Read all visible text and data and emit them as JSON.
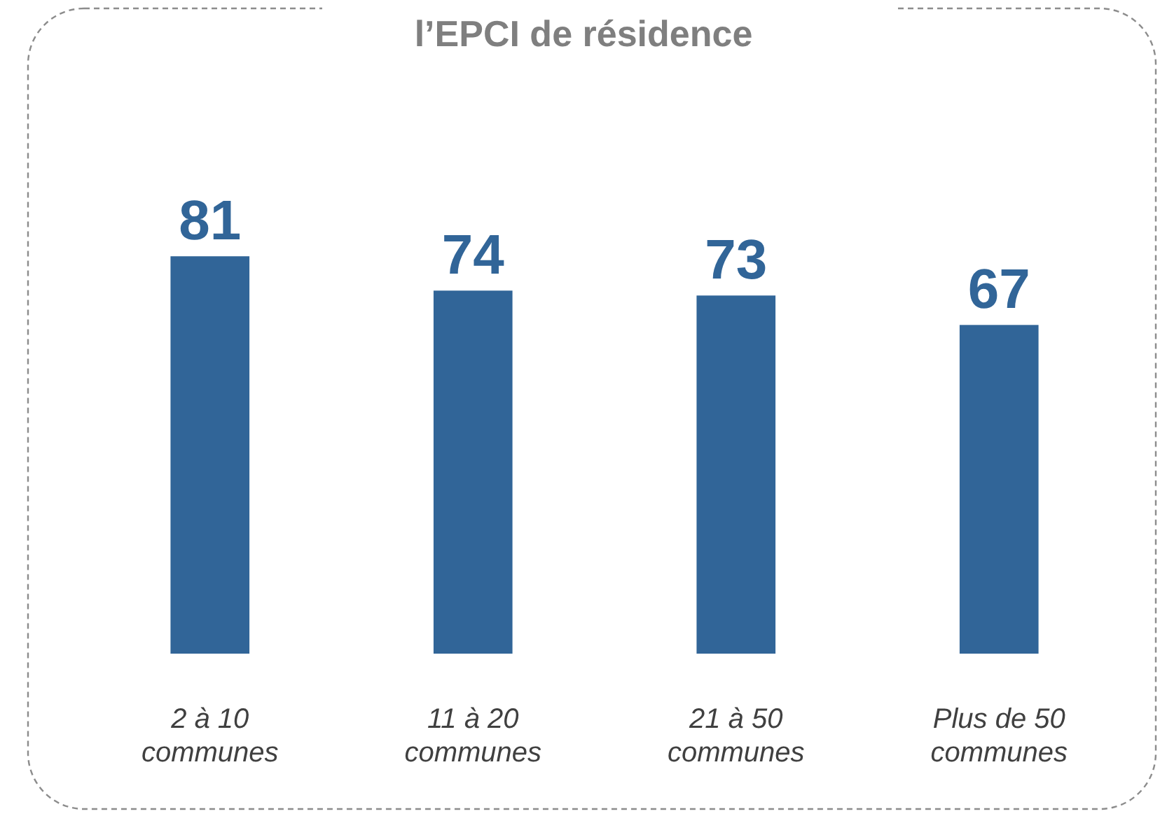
{
  "chart_data": {
    "type": "bar",
    "title": "l’EPCI de résidence",
    "categories": [
      "2 à 10\ncommunes",
      "11 à 20\ncommunes",
      "21 à 50\ncommunes",
      "Plus de 50\ncommunes"
    ],
    "values": [
      81,
      74,
      73,
      67
    ],
    "color": "#316598",
    "data_labels": true
  }
}
